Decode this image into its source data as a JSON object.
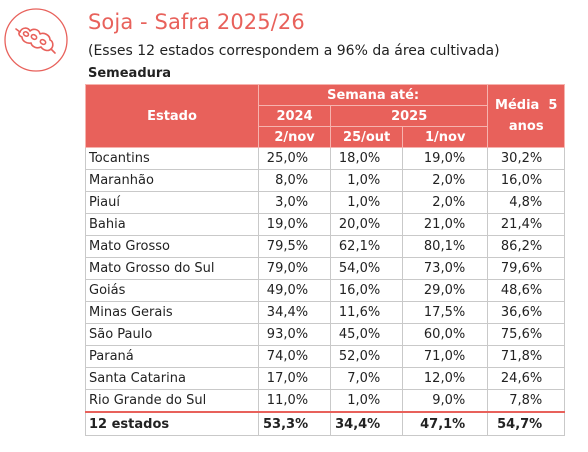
{
  "header": {
    "title": "Soja - Safra 2025/26",
    "subtitle": "(Esses 12 estados correspondem a 96% da área cultivada)",
    "section": "Semeadura",
    "logo_icon": "soybean-pod-icon",
    "accent_color": "#e8615b"
  },
  "table": {
    "col_estado": "Estado",
    "group_semana": "Semana até:",
    "year_2024": "2024",
    "year_2025": "2025",
    "col_media_line1": "Média  5",
    "col_media_line2": "anos",
    "date_2024": "2/nov",
    "date_2025a": "25/out",
    "date_2025b": "1/nov",
    "rows": [
      [
        "Tocantins",
        "25,0%",
        "18,0%",
        "19,0%",
        "30,2%"
      ],
      [
        "Maranhão",
        "8,0%",
        "1,0%",
        "2,0%",
        "16,0%"
      ],
      [
        "Piauí",
        "3,0%",
        "1,0%",
        "2,0%",
        "4,8%"
      ],
      [
        "Bahia",
        "19,0%",
        "20,0%",
        "21,0%",
        "21,4%"
      ],
      [
        "Mato Grosso",
        "79,5%",
        "62,1%",
        "80,1%",
        "86,2%"
      ],
      [
        "Mato Grosso do Sul",
        "79,0%",
        "54,0%",
        "73,0%",
        "79,6%"
      ],
      [
        "Goiás",
        "49,0%",
        "16,0%",
        "29,0%",
        "48,6%"
      ],
      [
        "Minas Gerais",
        "34,4%",
        "11,6%",
        "17,5%",
        "36,6%"
      ],
      [
        "São Paulo",
        "93,0%",
        "45,0%",
        "60,0%",
        "75,6%"
      ],
      [
        "Paraná",
        "74,0%",
        "52,0%",
        "71,0%",
        "71,8%"
      ],
      [
        "Santa Catarina",
        "17,0%",
        "7,0%",
        "12,0%",
        "24,6%"
      ],
      [
        "Rio Grande do Sul",
        "11,0%",
        "1,0%",
        "9,0%",
        "7,8%"
      ]
    ],
    "total": [
      "12 estados",
      "53,3%",
      "34,4%",
      "47,1%",
      "54,7%"
    ]
  }
}
